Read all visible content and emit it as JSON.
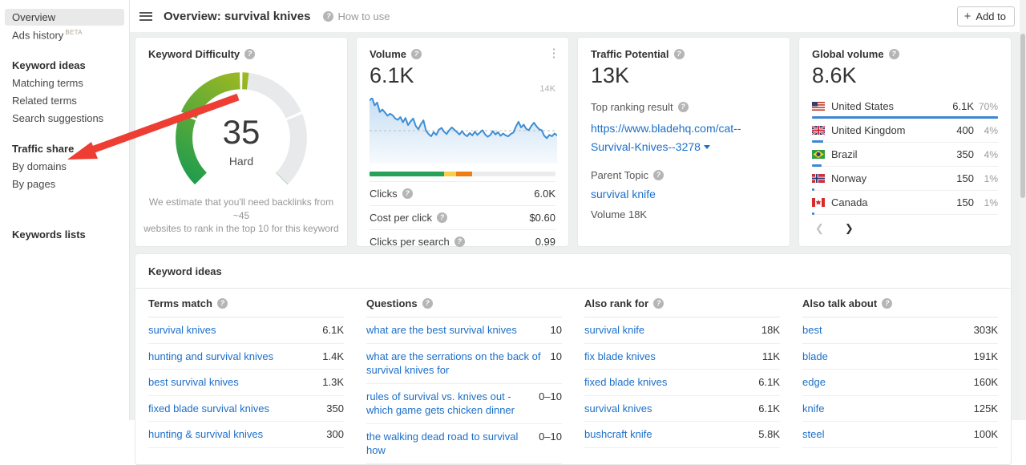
{
  "sidebar": {
    "items": [
      {
        "label": "Overview",
        "active": true
      },
      {
        "label": "Ads history",
        "badge": "BETA"
      },
      {
        "type": "header",
        "label": "Keyword ideas"
      },
      {
        "label": "Matching terms"
      },
      {
        "label": "Related terms"
      },
      {
        "label": "Search suggestions"
      },
      {
        "type": "header",
        "label": "Traffic share"
      },
      {
        "label": "By domains"
      },
      {
        "label": "By pages"
      },
      {
        "type": "header",
        "label": "Keywords lists"
      }
    ]
  },
  "header": {
    "title": "Overview: survival knives",
    "help_label": "How to use",
    "add_to_label": "Add to"
  },
  "cards": {
    "difficulty": {
      "title": "Keyword Difficulty",
      "value": "35",
      "label": "Hard",
      "percent": 52.5,
      "segment_gaps": [
        25,
        50,
        75
      ],
      "note_line1": "We estimate that you'll need backlinks from ~45",
      "note_line2": "websites to rank in the top 10 for this keyword",
      "colors": {
        "fill_start": "#1d9c4e",
        "fill_end": "#a6ba1f",
        "track": "#e8e9ea"
      }
    },
    "volume": {
      "title": "Volume",
      "value": "6.1K",
      "ymax_label": "14K",
      "bar_segments": [
        {
          "name": "organic-clicks",
          "color": "#27a257",
          "pct": 40
        },
        {
          "name": "paid-clicks",
          "color": "#f7cf4e",
          "pct": 6.5
        },
        {
          "name": "ads",
          "color": "#f07d12",
          "pct": 8.5
        },
        {
          "name": "no-clicks",
          "color": "#ececec",
          "pct": 45
        }
      ],
      "rows": [
        {
          "label": "Clicks",
          "value": "6.0K"
        },
        {
          "label": "Cost per click",
          "value": "$0.60"
        },
        {
          "label": "Clicks per search",
          "value": "0.99"
        }
      ]
    },
    "traffic_potential": {
      "title": "Traffic Potential",
      "value": "13K",
      "top_ranking_label": "Top ranking result",
      "top_ranking_url": "https://www.bladehq.com/cat--Survival-Knives--3278",
      "parent_topic_label": "Parent Topic",
      "parent_topic": "survival knife",
      "parent_volume": "Volume 18K"
    },
    "global_volume": {
      "title": "Global volume",
      "value": "8.6K",
      "bar_color": "#3d87d4",
      "countries": [
        {
          "flag": "us",
          "name": "United States",
          "value": "6.1K",
          "pct": "70%",
          "bar": 100
        },
        {
          "flag": "gb",
          "name": "United Kingdom",
          "value": "400",
          "pct": "4%",
          "bar": 6
        },
        {
          "flag": "br",
          "name": "Brazil",
          "value": "350",
          "pct": "4%",
          "bar": 5
        },
        {
          "flag": "no",
          "name": "Norway",
          "value": "150",
          "pct": "1%",
          "bar": 1.5
        },
        {
          "flag": "ca",
          "name": "Canada",
          "value": "150",
          "pct": "1%",
          "bar": 1.5
        }
      ]
    }
  },
  "keyword_ideas": {
    "title": "Keyword ideas",
    "columns": [
      {
        "header": "Terms match",
        "rows": [
          {
            "kw": "survival knives",
            "value": "6.1K"
          },
          {
            "kw": "hunting and survival knives",
            "value": "1.4K"
          },
          {
            "kw": "best survival knives",
            "value": "1.3K"
          },
          {
            "kw": "fixed blade survival knives",
            "value": "350"
          },
          {
            "kw": "hunting & survival knives",
            "value": "300"
          }
        ]
      },
      {
        "header": "Questions",
        "rows": [
          {
            "kw": "what are the best survival knives",
            "value": "10"
          },
          {
            "kw": "what are the serrations on the back of survival knives for",
            "value": "10"
          },
          {
            "kw": "rules of survival vs. knives out - which game gets chicken dinner",
            "value": "0–10"
          },
          {
            "kw": "the walking dead road to survival how",
            "value": "0–10"
          }
        ]
      },
      {
        "header": "Also rank for",
        "rows": [
          {
            "kw": "survival knife",
            "value": "18K"
          },
          {
            "kw": "fix blade knives",
            "value": "11K"
          },
          {
            "kw": "fixed blade knives",
            "value": "6.1K"
          },
          {
            "kw": "survival knives",
            "value": "6.1K"
          },
          {
            "kw": "bushcraft knife",
            "value": "5.8K"
          }
        ]
      },
      {
        "header": "Also talk about",
        "rows": [
          {
            "kw": "best",
            "value": "303K"
          },
          {
            "kw": "blade",
            "value": "191K"
          },
          {
            "kw": "edge",
            "value": "160K"
          },
          {
            "kw": "knife",
            "value": "125K"
          },
          {
            "kw": "steel",
            "value": "100K"
          }
        ]
      }
    ]
  },
  "chart_data": {
    "type": "line",
    "title": "Volume trend",
    "ylim": [
      0,
      14
    ],
    "ymax_label": "14K",
    "dashed_reference": 7,
    "line_color": "#3e8ed5",
    "values": [
      13.4,
      14.0,
      12.4,
      13.0,
      11.0,
      11.5,
      10.9,
      10.2,
      10.6,
      10.3,
      9.6,
      9.3,
      9.9,
      8.8,
      9.7,
      8.2,
      9.0,
      9.6,
      8.0,
      7.3,
      8.4,
      9.2,
      7.0,
      6.3,
      5.8,
      6.7,
      6.1,
      7.2,
      7.6,
      6.8,
      6.3,
      7.1,
      7.7,
      7.2,
      6.7,
      6.2,
      6.9,
      6.2,
      5.8,
      6.5,
      6.0,
      6.8,
      6.1,
      6.6,
      7.1,
      6.2,
      5.7,
      6.1,
      6.9,
      6.2,
      6.7,
      5.9,
      6.4,
      6.0,
      5.8,
      6.3,
      6.6,
      7.9,
      8.9,
      7.7,
      8.3,
      7.4,
      7.1,
      8.0,
      8.7,
      7.9,
      7.3,
      7.1,
      5.9,
      5.4,
      6.1,
      5.8,
      6.4,
      6.0
    ]
  },
  "annotation": {
    "arrow_color": "#ee3d33"
  }
}
